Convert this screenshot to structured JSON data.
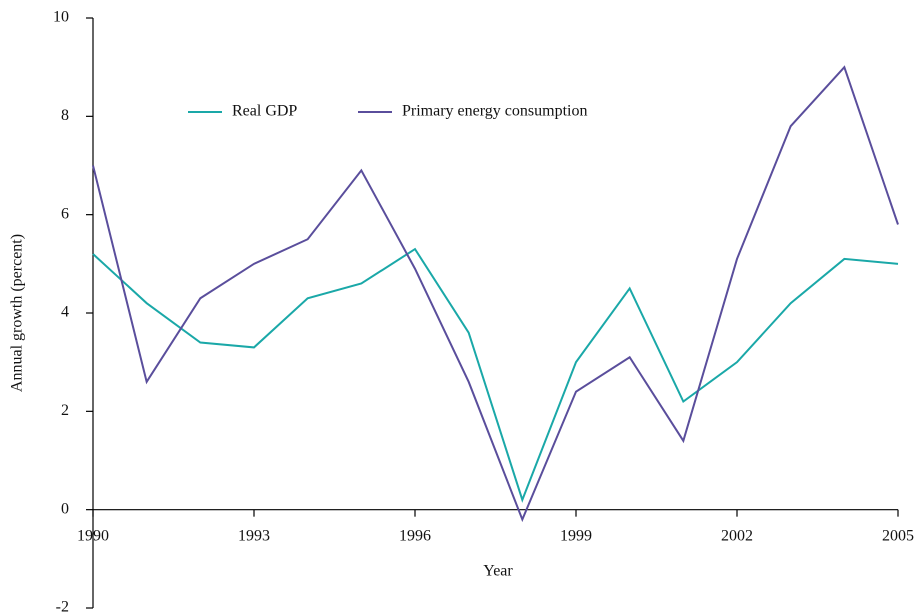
{
  "chart_data": {
    "type": "line",
    "x_label": "Year",
    "y_label": "Annual growth (percent)",
    "x": [
      1990,
      1991,
      1992,
      1993,
      1994,
      1995,
      1996,
      1997,
      1998,
      1999,
      2000,
      2001,
      2002,
      2003,
      2004,
      2005
    ],
    "series": [
      {
        "name": "Real GDP",
        "color": "#1aa8a8",
        "values": [
          5.2,
          4.2,
          3.4,
          3.3,
          4.3,
          4.6,
          5.3,
          3.6,
          0.2,
          3.0,
          4.5,
          2.2,
          3.0,
          4.2,
          5.1,
          5.0
        ]
      },
      {
        "name": "Primary energy consumption",
        "color": "#5a4e9c",
        "values": [
          7.0,
          2.6,
          4.3,
          5.0,
          5.5,
          6.9,
          4.9,
          2.6,
          -0.2,
          2.4,
          3.1,
          1.4,
          5.1,
          7.8,
          9.0,
          5.8
        ]
      }
    ],
    "xlim": [
      1990,
      2005
    ],
    "xticks": [
      1990,
      1993,
      1996,
      1999,
      2002,
      2005
    ],
    "ylim": [
      -2,
      10
    ],
    "yticks": [
      -2,
      0,
      2,
      4,
      6,
      8,
      10
    ],
    "grid": false,
    "legend": "top"
  }
}
